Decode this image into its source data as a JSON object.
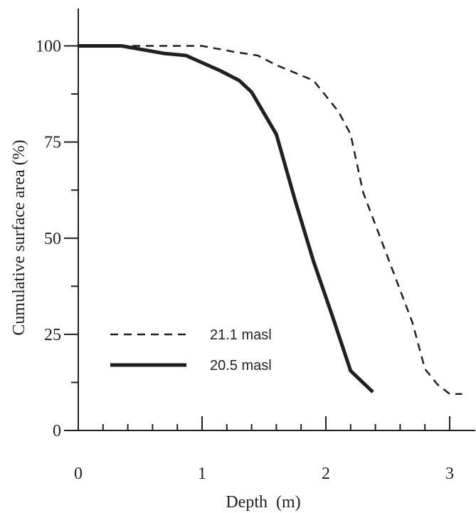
{
  "chart_data": {
    "type": "line",
    "title": "",
    "xlabel": "Depth  (m)",
    "ylabel": "Cumulative surface area (%)",
    "xlim": [
      0,
      3.2
    ],
    "ylim": [
      0,
      110
    ],
    "xticks": [
      0,
      1,
      2,
      3
    ],
    "xtick_labels": [
      "0",
      "1",
      "2",
      "3"
    ],
    "yticks": [
      0,
      25,
      50,
      75,
      100
    ],
    "ytick_labels": [
      "0",
      "25",
      "50",
      "75",
      "100"
    ],
    "x_minor_step": 0.2,
    "grid": false,
    "legend_position": "bottom-left",
    "series": [
      {
        "name": "21.1 masl",
        "style": "dashed",
        "color": "#231f20",
        "x": [
          0,
          0.4,
          1.0,
          1.25,
          1.45,
          1.6,
          1.9,
          2.1,
          2.2,
          2.3,
          2.5,
          2.7,
          2.8,
          2.9,
          3.0,
          3.1
        ],
        "y": [
          100,
          100,
          100,
          98.5,
          97.5,
          95,
          91,
          83,
          77,
          62,
          45,
          28,
          16,
          12,
          9.5,
          9.5
        ]
      },
      {
        "name": "20.5 masl",
        "style": "solid",
        "color": "#231f20",
        "x": [
          0,
          0.35,
          0.7,
          0.87,
          1.15,
          1.3,
          1.4,
          1.6,
          1.75,
          1.9,
          2.05,
          2.2,
          2.38
        ],
        "y": [
          100,
          100,
          98,
          97.5,
          93.5,
          91,
          88,
          77,
          60,
          44,
          30,
          15.5,
          10
        ]
      }
    ]
  }
}
